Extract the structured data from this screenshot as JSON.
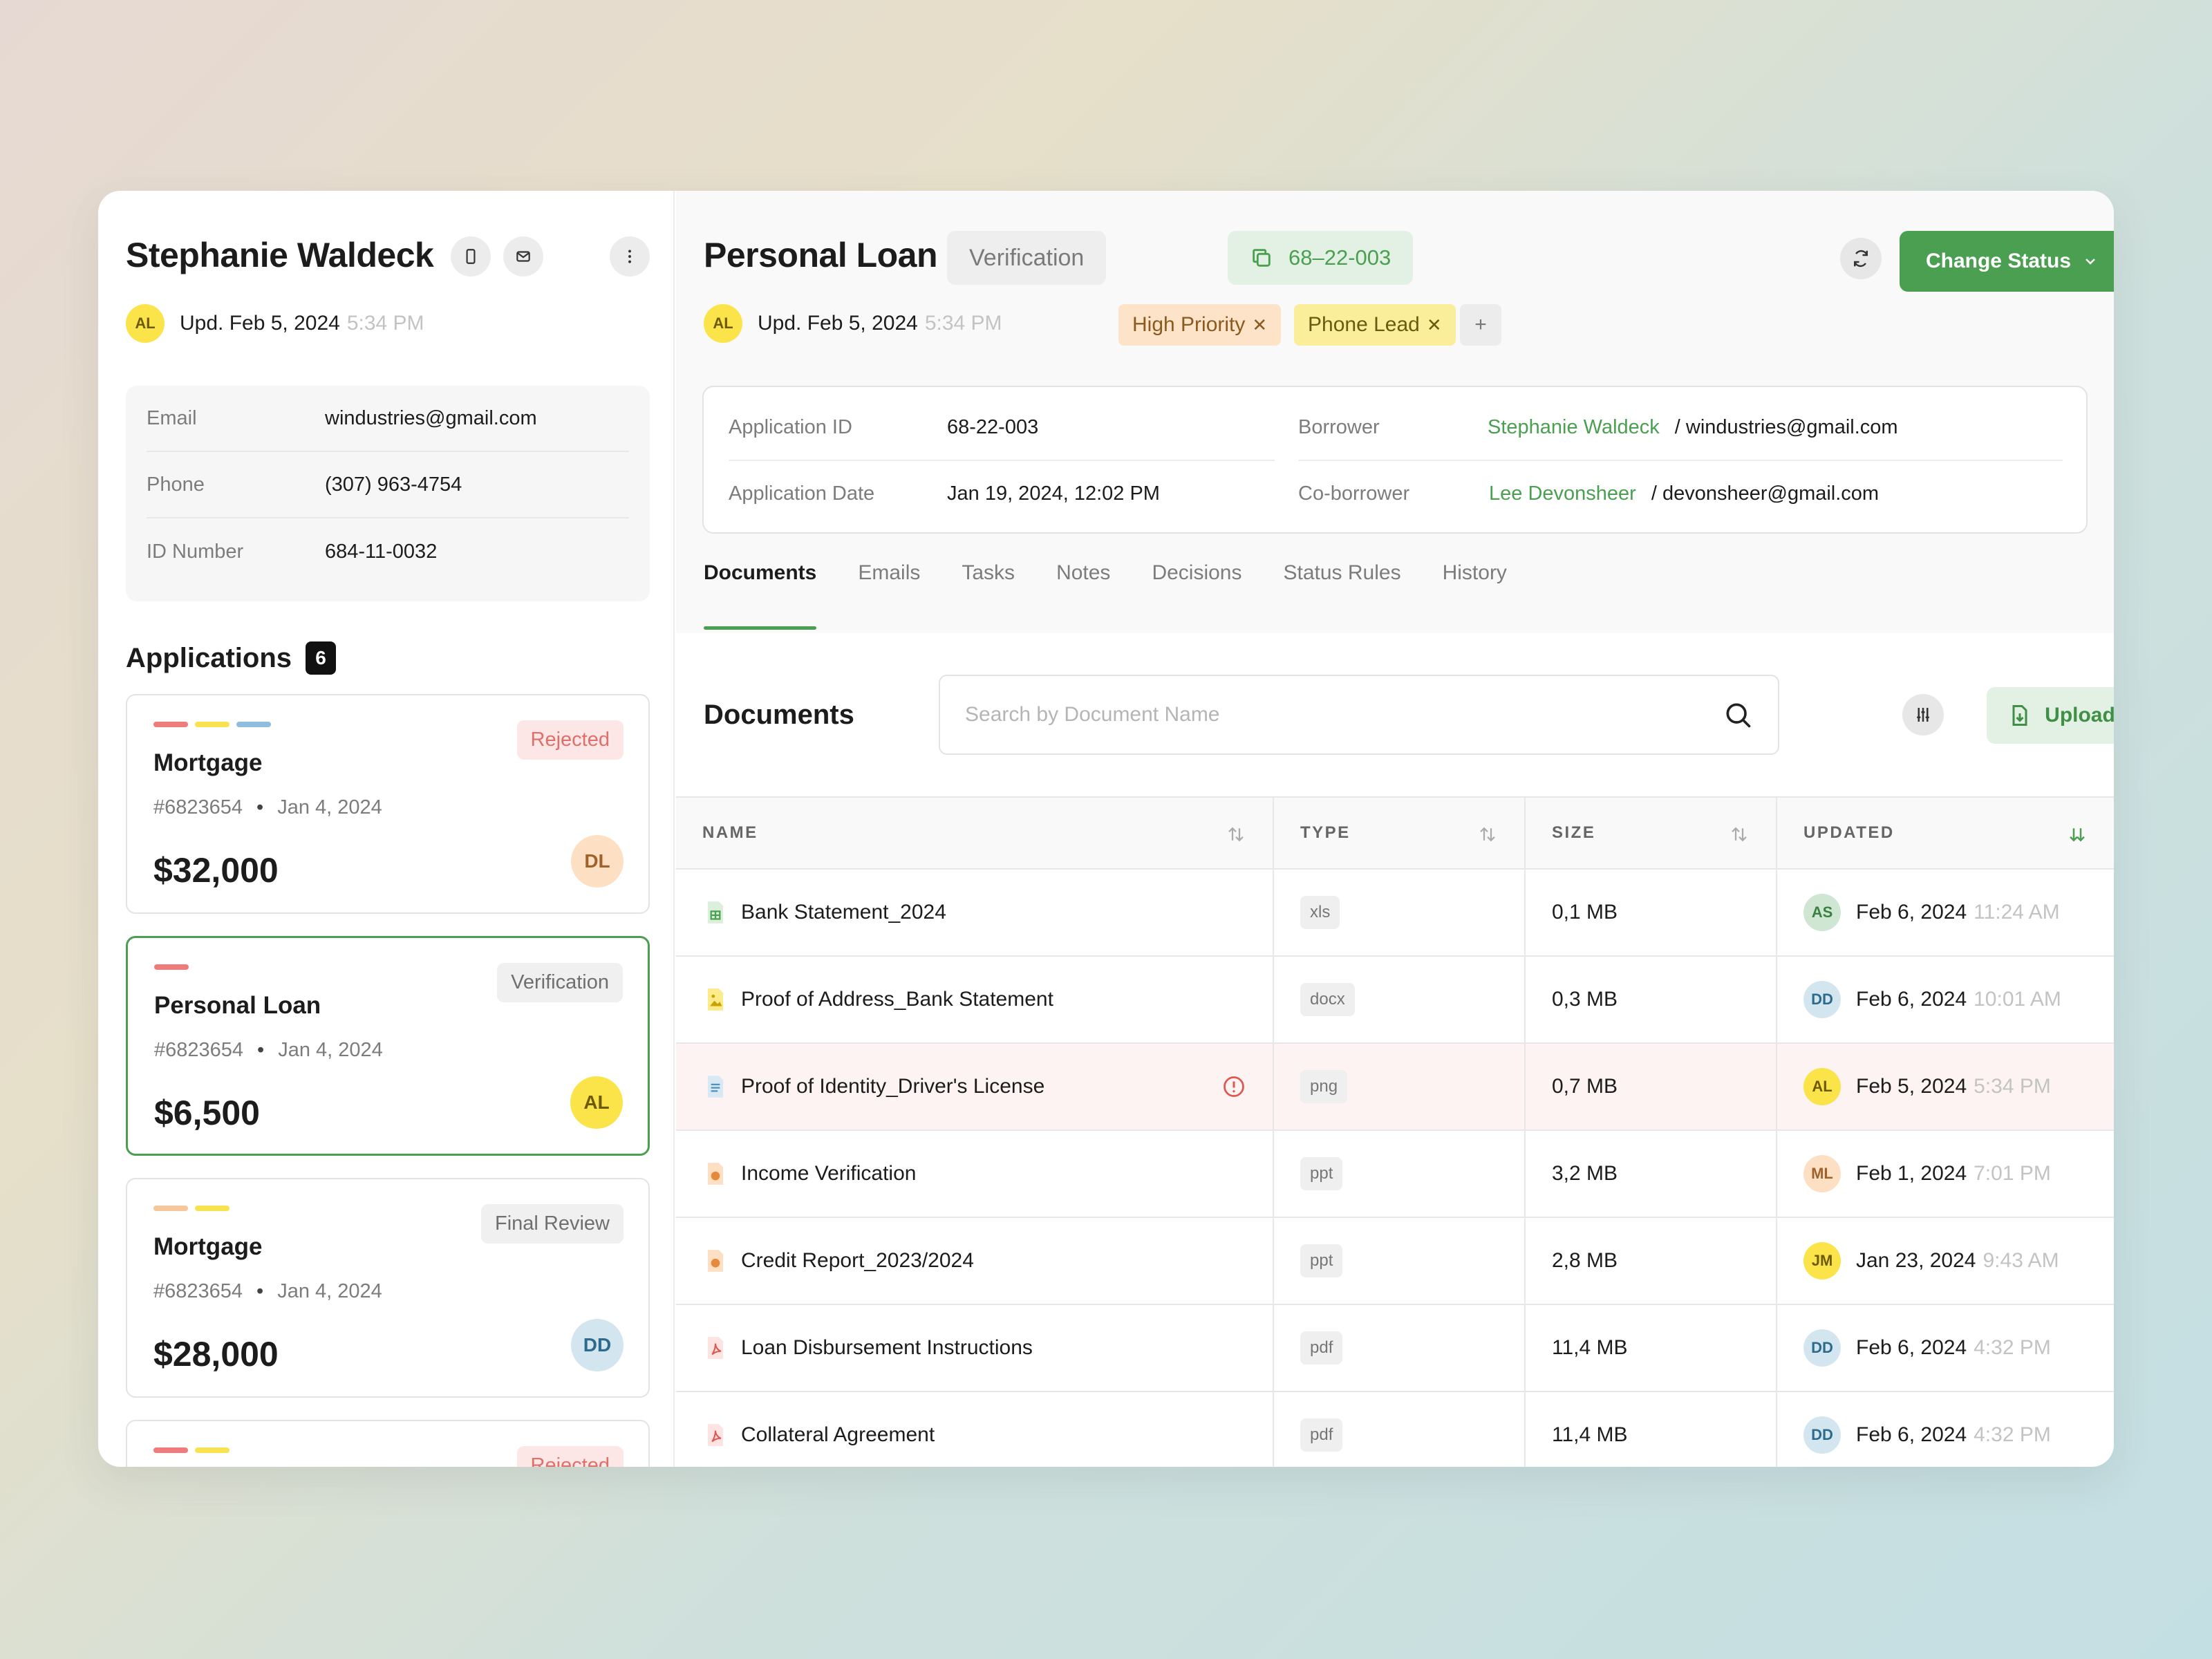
{
  "borrower": {
    "name": "Stephanie Waldeck",
    "updated_initials": "AL",
    "updated_date": "Upd. Feb 5, 2024",
    "updated_time": "5:34 PM",
    "info": [
      {
        "label": "Email",
        "value": "windustries@gmail.com"
      },
      {
        "label": "Phone",
        "value": "(307) 963-4754"
      },
      {
        "label": "ID Number",
        "value": "684-11-0032"
      }
    ]
  },
  "applications": {
    "title": "Applications",
    "count": "6",
    "items": [
      {
        "title": "Mortgage",
        "number": "#6823654",
        "date": "Jan 4, 2024",
        "amount": "$32,000",
        "status": "Rejected",
        "initials": "DL",
        "bar_colors": [
          "#ef7b7b",
          "#f9e24f",
          "#8fbde0"
        ]
      },
      {
        "title": "Personal Loan",
        "number": "#6823654",
        "date": "Jan 4, 2024",
        "amount": "$6,500",
        "status": "Verification",
        "initials": "AL",
        "bar_colors": [
          "#ef7b7b"
        ]
      },
      {
        "title": "Mortgage",
        "number": "#6823654",
        "date": "Jan 4, 2024",
        "amount": "$28,000",
        "status": "Final Review",
        "initials": "DD",
        "bar_colors": [
          "#f6c79a",
          "#f9e24f"
        ]
      },
      {
        "status": "Rejected",
        "bar_colors": [
          "#ef7b7b",
          "#f9e24f"
        ]
      }
    ]
  },
  "loan": {
    "title": "Personal Loan",
    "status_chip": "Verification",
    "id_chip": "68–22-003",
    "change_status_label": "Change Status",
    "updated_initials": "AL",
    "updated_date": "Upd. Feb 5, 2024",
    "updated_time": "5:34 PM",
    "tags": [
      "High Priority",
      "Phone Lead"
    ],
    "add_tag_label": "+",
    "details": {
      "application_id_label": "Application ID",
      "application_id": "68-22-003",
      "application_date_label": "Application Date",
      "application_date": "Jan 19, 2024, 12:02 PM",
      "borrower_label": "Borrower",
      "borrower_name": "Stephanie Waldeck",
      "borrower_email": "/ windustries@gmail.com",
      "coborrower_label": "Co-borrower",
      "coborrower_name": "Lee Devonsheer",
      "coborrower_email": "/ devonsheer@gmail.com"
    }
  },
  "tabs": [
    "Documents",
    "Emails",
    "Tasks",
    "Notes",
    "Decisions",
    "Status Rules",
    "History"
  ],
  "documents": {
    "title": "Documents",
    "search_placeholder": "Search by Document Name",
    "upload_label": "Upload New",
    "columns": [
      "NAME",
      "TYPE",
      "SIZE",
      "UPDATED"
    ],
    "rows": [
      {
        "name": "Bank Statement_2024",
        "icon": "spreadsheet-icon",
        "type": "xls",
        "size": "0,1 MB",
        "initials": "AS",
        "date": "Feb 6, 2024",
        "time": "11:24 AM"
      },
      {
        "name": "Proof of Address_Bank Statement",
        "icon": "image-icon",
        "type": "docx",
        "size": "0,3 MB",
        "initials": "DD",
        "date": "Feb 6, 2024",
        "time": "10:01 AM"
      },
      {
        "name": "Proof of Identity_Driver's License",
        "icon": "document-icon",
        "type": "png",
        "size": "0,7 MB",
        "initials": "AL",
        "date": "Feb 5, 2024",
        "time": "5:34 PM",
        "flagged": true
      },
      {
        "name": "Income Verification",
        "icon": "presentation-icon",
        "type": "ppt",
        "size": "3,2 MB",
        "initials": "ML",
        "date": "Feb 1, 2024",
        "time": "7:01 PM"
      },
      {
        "name": "Credit Report_2023/2024",
        "icon": "presentation-icon",
        "type": "ppt",
        "size": "2,8 MB",
        "initials": "JM",
        "date": "Jan 23, 2024",
        "time": "9:43 AM"
      },
      {
        "name": "Loan Disbursement Instructions",
        "icon": "pdf-icon",
        "type": "pdf",
        "size": "11,4 MB",
        "initials": "DD",
        "date": "Feb 6, 2024",
        "time": "4:32 PM"
      },
      {
        "name": "Collateral Agreement",
        "icon": "pdf-icon",
        "type": "pdf",
        "size": "11,4 MB",
        "initials": "DD",
        "date": "Feb 6, 2024",
        "time": "4:32 PM"
      }
    ]
  },
  "colors": {
    "accent": "#4a9f50",
    "warning": "#e0564f"
  }
}
